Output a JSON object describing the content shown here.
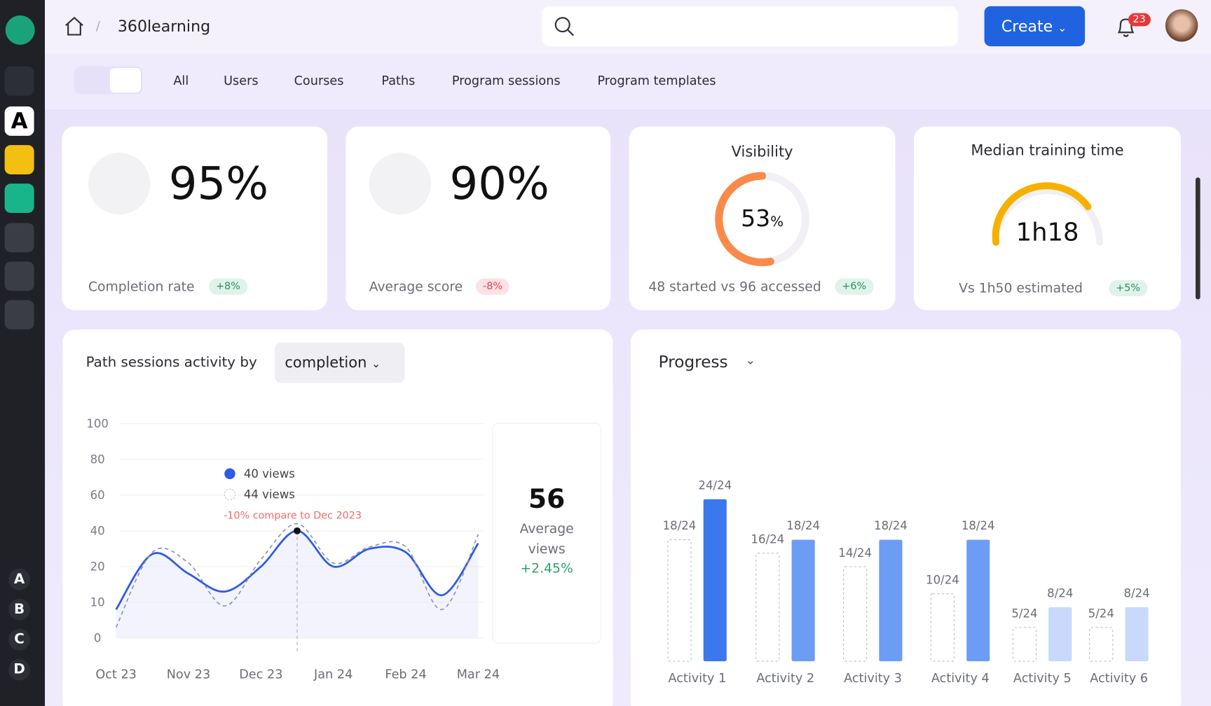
{
  "header": {
    "breadcrumb": "360learning",
    "create": "Create",
    "notifications": "23"
  },
  "sidebar": {
    "workspace": "A",
    "letters": [
      "A",
      "B",
      "C",
      "D"
    ]
  },
  "tabs": [
    "All",
    "Users",
    "Courses",
    "Paths",
    "Program sessions",
    "Program templates"
  ],
  "kpis": [
    {
      "value": "95%",
      "label": "Completion rate",
      "delta": "+8%"
    },
    {
      "value": "90%",
      "label": "Average score",
      "delta": "-8%"
    },
    {
      "title": "Visibility",
      "value": 53,
      "unit": "%",
      "label": "48 started vs 96 accessed",
      "delta": "+6%"
    },
    {
      "title": "Median training time",
      "value": "1h18",
      "label": "Vs 1h50 estimated",
      "delta": "+5%"
    }
  ],
  "activity_chart": {
    "title": "Path sessions activity by",
    "dropdown": "completion",
    "yticks": [
      0,
      10,
      20,
      40,
      60,
      80,
      100
    ],
    "categories": [
      "Oct 23",
      null,
      "Nov 23",
      null,
      "Dec 23",
      null,
      "Jan 24",
      null,
      "Feb 24",
      null,
      "Mar 24"
    ],
    "series": [
      {
        "color": "#2d5be3",
        "values": [
          8,
          27,
          18,
          13,
          20,
          40,
          20,
          30,
          28,
          12,
          33
        ]
      },
      {
        "color": "#8c93ad",
        "dashed": true,
        "values": [
          3,
          28,
          22,
          9,
          24,
          44,
          22,
          31,
          31,
          8,
          38
        ]
      }
    ],
    "tooltip": {
      "index": 5,
      "items": [
        "40 views",
        "44 views"
      ],
      "note": "-10% compare to Dec 2023"
    },
    "summary": {
      "value": 56,
      "label": "Average views",
      "delta": "+2.45%"
    }
  },
  "progress_chart": {
    "title": "Progress",
    "categories": [
      "Activity 1",
      "Activity 2",
      "Activity 3",
      "Activity 4",
      "Activity 5",
      "Activity 6"
    ],
    "series": [
      {
        "dashed": true,
        "color": "#b9bfd0",
        "values": [
          18,
          16,
          14,
          10,
          5,
          5
        ],
        "value_labels": [
          "18/24",
          "16/24",
          "14/24",
          "10/24",
          "5/24",
          "5/24"
        ]
      },
      {
        "colors": [
          "#3b78ee",
          "#6d9cf4",
          "#6d9cf4",
          "#6d9cf4",
          "#c8d9fb",
          "#c8d9fb"
        ],
        "values": [
          24,
          18,
          18,
          18,
          8,
          8
        ],
        "value_labels": [
          "24/24",
          "18/24",
          "18/24",
          "18/24",
          "8/24",
          "8/24"
        ]
      }
    ]
  }
}
